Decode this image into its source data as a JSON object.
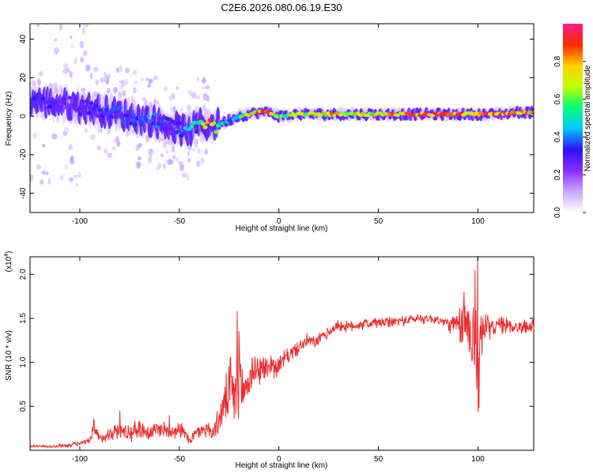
{
  "title": "C2E6.2026.080.06.19.E30",
  "colors": {
    "snr_line": "#ee2b2b",
    "axes": "#000000",
    "background": "#ffffff"
  },
  "chart_data": [
    {
      "type": "heatmap",
      "name": "spectrogram",
      "xlabel": "Height of straight line (km)",
      "ylabel": "Frequency (Hz)",
      "xlim": [
        -125,
        128
      ],
      "ylim": [
        -50,
        48
      ],
      "xticks": [
        -100,
        -50,
        0,
        50,
        100
      ],
      "yticks": [
        -40,
        -20,
        0,
        20,
        40
      ],
      "colorbar": {
        "label": "Normalized spectral amplitude",
        "range": [
          0,
          1
        ],
        "ticks": [
          "0.0",
          "0.2",
          "0.4",
          "0.6",
          "0.8"
        ],
        "tick_values": [
          0.0,
          0.2,
          0.4,
          0.6,
          0.8
        ],
        "colormap": [
          "#ffffff",
          "#c8a8ff",
          "#8a2bff",
          "#2a10ff",
          "#00c8ff",
          "#00ff7a",
          "#bfff00",
          "#ffd000",
          "#ff2a00",
          "#ff1a8c"
        ]
      },
      "ridge": {
        "x": [
          -125,
          -115,
          -105,
          -95,
          -85,
          -75,
          -65,
          -55,
          -45,
          -40,
          -35,
          -30,
          -25,
          -20,
          -15,
          -10,
          -5,
          0,
          10,
          20,
          30,
          40,
          50,
          60,
          70,
          80,
          90,
          100,
          110,
          120,
          128
        ],
        "freq": [
          8,
          7,
          6,
          4,
          2,
          0,
          -2,
          -5,
          -8,
          -4,
          -5,
          -4,
          -2,
          0,
          1,
          2,
          2,
          0,
          1,
          1,
          1,
          1,
          1,
          1,
          1,
          1,
          1,
          1,
          1,
          2,
          2
        ],
        "peak_amplitude": [
          0.4,
          0.3,
          0.25,
          0.3,
          0.35,
          0.35,
          0.4,
          0.3,
          0.5,
          0.45,
          0.9,
          0.5,
          0.45,
          0.55,
          0.7,
          0.85,
          0.9,
          0.6,
          0.7,
          0.75,
          0.8,
          0.7,
          0.75,
          0.8,
          0.85,
          0.9,
          0.85,
          0.9,
          0.85,
          0.8,
          0.75
        ]
      }
    },
    {
      "type": "line",
      "name": "snr",
      "xlabel": "Height of straight line (km)",
      "ylabel": "SNR (10 * v/v)",
      "y_multiplier_label": "(x10",
      "y_multiplier_exp": "4",
      "y_multiplier_close": ")",
      "xlim": [
        -125,
        128
      ],
      "ylim": [
        0,
        2.2
      ],
      "xticks": [
        -100,
        -50,
        0,
        50,
        100
      ],
      "yticks": [
        "0.5",
        "1.0",
        "1.5",
        "2.0"
      ],
      "ytick_values": [
        0.5,
        1.0,
        1.5,
        2.0
      ],
      "series": [
        {
          "name": "SNR",
          "x": [
            -125,
            -115,
            -105,
            -100,
            -95,
            -93,
            -90,
            -85,
            -80,
            -75,
            -70,
            -65,
            -60,
            -55,
            -50,
            -45,
            -40,
            -36,
            -33,
            -30,
            -27,
            -24,
            -22,
            -20,
            -18,
            -16,
            -14,
            -12,
            -10,
            -8,
            -6,
            -4,
            -2,
            0,
            3,
            6,
            9,
            12,
            15,
            18,
            21,
            24,
            27,
            30,
            35,
            40,
            45,
            50,
            55,
            60,
            65,
            70,
            75,
            80,
            85,
            90,
            93,
            96,
            99,
            100,
            101,
            103,
            106,
            110,
            115,
            120,
            125,
            128
          ],
          "values": [
            0.05,
            0.04,
            0.06,
            0.08,
            0.1,
            0.25,
            0.12,
            0.2,
            0.22,
            0.2,
            0.25,
            0.2,
            0.25,
            0.22,
            0.25,
            0.12,
            0.22,
            0.25,
            0.2,
            0.35,
            0.55,
            0.7,
            0.55,
            0.9,
            0.65,
            0.75,
            0.85,
            0.95,
            0.9,
            0.95,
            0.9,
            1.0,
            0.95,
            0.95,
            1.05,
            1.1,
            1.15,
            1.2,
            1.25,
            1.22,
            1.28,
            1.32,
            1.38,
            1.42,
            1.4,
            1.43,
            1.44,
            1.45,
            1.45,
            1.47,
            1.48,
            1.5,
            1.5,
            1.48,
            1.44,
            1.4,
            1.45,
            1.42,
            1.2,
            0.5,
            1.4,
            1.35,
            1.4,
            1.42,
            1.42,
            1.4,
            1.4,
            1.42
          ],
          "noise": [
            0.02,
            0.02,
            0.03,
            0.03,
            0.05,
            0.12,
            0.08,
            0.1,
            0.12,
            0.12,
            0.15,
            0.12,
            0.12,
            0.12,
            0.12,
            0.08,
            0.1,
            0.12,
            0.12,
            0.2,
            0.3,
            0.5,
            0.4,
            0.55,
            0.35,
            0.35,
            0.3,
            0.25,
            0.2,
            0.2,
            0.2,
            0.15,
            0.15,
            0.15,
            0.12,
            0.1,
            0.1,
            0.1,
            0.1,
            0.08,
            0.08,
            0.08,
            0.08,
            0.08,
            0.08,
            0.08,
            0.08,
            0.08,
            0.08,
            0.07,
            0.07,
            0.07,
            0.07,
            0.07,
            0.1,
            0.2,
            0.45,
            0.5,
            0.6,
            0.6,
            0.5,
            0.25,
            0.15,
            0.12,
            0.12,
            0.1,
            0.1,
            0.1
          ],
          "peaks": [
            {
              "x": -21,
              "value": 1.58
            },
            {
              "x": 98.5,
              "value": 2.05
            },
            {
              "x": 99.8,
              "value": 2.2
            },
            {
              "x": 100.5,
              "value": 0.48
            },
            {
              "x": 93,
              "value": 1.8
            },
            {
              "x": -93,
              "value": 0.35
            },
            {
              "x": -80,
              "value": 0.45
            },
            {
              "x": -55,
              "value": 0.4
            }
          ]
        }
      ]
    }
  ]
}
